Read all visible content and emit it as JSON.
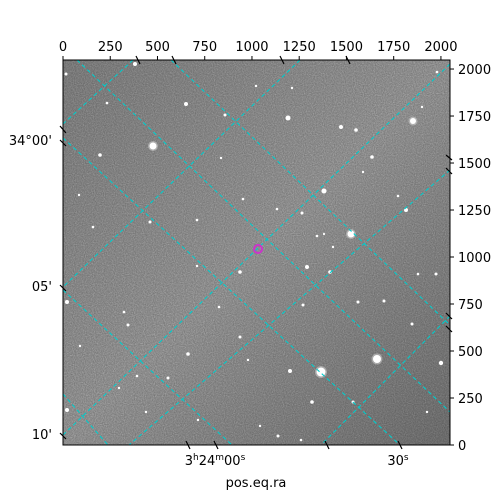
{
  "chart_data": {
    "type": "astronomical-image",
    "xlabel": "pos.eq.ra",
    "pixel_axes": {
      "x_ticks": [
        "0",
        "250",
        "500",
        "750",
        "1000",
        "1250",
        "1500",
        "1750",
        "2000"
      ],
      "x_range": [
        0,
        2048
      ],
      "y_ticks": [
        "0",
        "250",
        "500",
        "750",
        "1000",
        "1250",
        "1500",
        "1750",
        "2000"
      ],
      "y_range": [
        0,
        2048
      ]
    },
    "world_axes": {
      "ra_ticks": [
        {
          "label_main": "3",
          "label_sup1": "h",
          "label_mid": "24",
          "label_sup2": "m",
          "label_end": "00",
          "label_sup3": "s"
        },
        {
          "label_main": "30",
          "label_sup1": "s"
        }
      ],
      "dec_ticks": [
        "34°00'",
        "05'",
        "10'"
      ]
    },
    "grid": true,
    "grid_color": "#00cccc",
    "marker_color": "#cc33cc",
    "image_colormap": "gray"
  }
}
